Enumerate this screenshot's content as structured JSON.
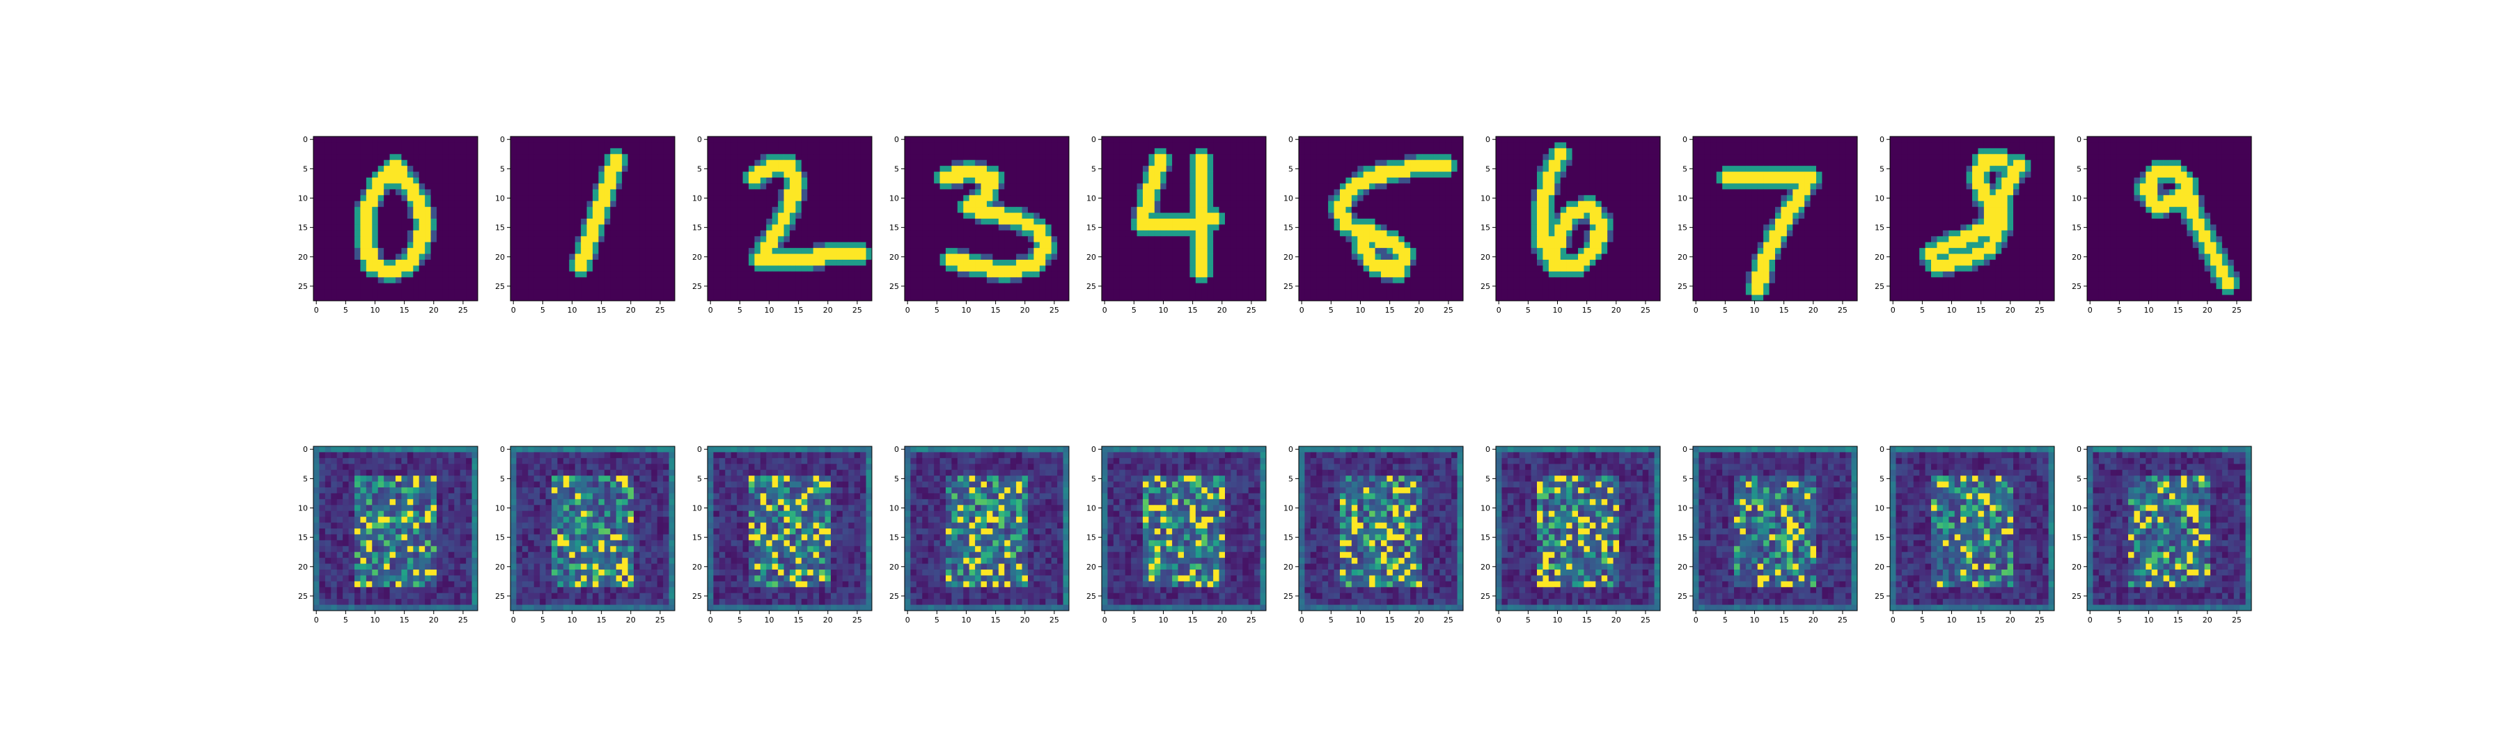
{
  "figure": {
    "colormap": "viridis",
    "background_color": "#ffffff",
    "axes_color": "#000000",
    "colormap_dark": "#440154",
    "colormap_bright": "#fde725"
  },
  "chart_data": [
    {
      "type": "heatmap",
      "row": "top",
      "column": 1,
      "image": "digit-0",
      "xlim": [
        -0.5,
        27.5
      ],
      "ylim": [
        27.5,
        -0.5
      ],
      "xticks": [
        0,
        5,
        10,
        15,
        20,
        25
      ],
      "yticks": [
        0,
        5,
        10,
        15,
        20,
        25
      ]
    },
    {
      "type": "heatmap",
      "row": "top",
      "column": 2,
      "image": "digit-1",
      "xlim": [
        -0.5,
        27.5
      ],
      "ylim": [
        27.5,
        -0.5
      ],
      "xticks": [
        0,
        5,
        10,
        15,
        20,
        25
      ],
      "yticks": [
        0,
        5,
        10,
        15,
        20,
        25
      ]
    },
    {
      "type": "heatmap",
      "row": "top",
      "column": 3,
      "image": "digit-2",
      "xlim": [
        -0.5,
        27.5
      ],
      "ylim": [
        27.5,
        -0.5
      ],
      "xticks": [
        0,
        5,
        10,
        15,
        20,
        25
      ],
      "yticks": [
        0,
        5,
        10,
        15,
        20,
        25
      ]
    },
    {
      "type": "heatmap",
      "row": "top",
      "column": 4,
      "image": "digit-3",
      "xlim": [
        -0.5,
        27.5
      ],
      "ylim": [
        27.5,
        -0.5
      ],
      "xticks": [
        0,
        5,
        10,
        15,
        20,
        25
      ],
      "yticks": [
        0,
        5,
        10,
        15,
        20,
        25
      ]
    },
    {
      "type": "heatmap",
      "row": "top",
      "column": 5,
      "image": "digit-4",
      "xlim": [
        -0.5,
        27.5
      ],
      "ylim": [
        27.5,
        -0.5
      ],
      "xticks": [
        0,
        5,
        10,
        15,
        20,
        25
      ],
      "yticks": [
        0,
        5,
        10,
        15,
        20,
        25
      ]
    },
    {
      "type": "heatmap",
      "row": "top",
      "column": 6,
      "image": "digit-5",
      "xlim": [
        -0.5,
        27.5
      ],
      "ylim": [
        27.5,
        -0.5
      ],
      "xticks": [
        0,
        5,
        10,
        15,
        20,
        25
      ],
      "yticks": [
        0,
        5,
        10,
        15,
        20,
        25
      ]
    },
    {
      "type": "heatmap",
      "row": "top",
      "column": 7,
      "image": "digit-6",
      "xlim": [
        -0.5,
        27.5
      ],
      "ylim": [
        27.5,
        -0.5
      ],
      "xticks": [
        0,
        5,
        10,
        15,
        20,
        25
      ],
      "yticks": [
        0,
        5,
        10,
        15,
        20,
        25
      ]
    },
    {
      "type": "heatmap",
      "row": "top",
      "column": 8,
      "image": "digit-7",
      "xlim": [
        -0.5,
        27.5
      ],
      "ylim": [
        27.5,
        -0.5
      ],
      "xticks": [
        0,
        5,
        10,
        15,
        20,
        25
      ],
      "yticks": [
        0,
        5,
        10,
        15,
        20,
        25
      ]
    },
    {
      "type": "heatmap",
      "row": "top",
      "column": 9,
      "image": "digit-8",
      "xlim": [
        -0.5,
        27.5
      ],
      "ylim": [
        27.5,
        -0.5
      ],
      "xticks": [
        0,
        5,
        10,
        15,
        20,
        25
      ],
      "yticks": [
        0,
        5,
        10,
        15,
        20,
        25
      ]
    },
    {
      "type": "heatmap",
      "row": "top",
      "column": 10,
      "image": "digit-9",
      "xlim": [
        -0.5,
        27.5
      ],
      "ylim": [
        27.5,
        -0.5
      ],
      "xticks": [
        0,
        5,
        10,
        15,
        20,
        25
      ],
      "yticks": [
        0,
        5,
        10,
        15,
        20,
        25
      ]
    },
    {
      "type": "heatmap",
      "row": "bottom",
      "column": 1,
      "image": "noisy-generated",
      "xlim": [
        -0.5,
        27.5
      ],
      "ylim": [
        27.5,
        -0.5
      ],
      "xticks": [
        0,
        5,
        10,
        15,
        20,
        25
      ],
      "yticks": [
        0,
        5,
        10,
        15,
        20,
        25
      ]
    },
    {
      "type": "heatmap",
      "row": "bottom",
      "column": 2,
      "image": "noisy-generated",
      "xlim": [
        -0.5,
        27.5
      ],
      "ylim": [
        27.5,
        -0.5
      ],
      "xticks": [
        0,
        5,
        10,
        15,
        20,
        25
      ],
      "yticks": [
        0,
        5,
        10,
        15,
        20,
        25
      ]
    },
    {
      "type": "heatmap",
      "row": "bottom",
      "column": 3,
      "image": "noisy-generated",
      "xlim": [
        -0.5,
        27.5
      ],
      "ylim": [
        27.5,
        -0.5
      ],
      "xticks": [
        0,
        5,
        10,
        15,
        20,
        25
      ],
      "yticks": [
        0,
        5,
        10,
        15,
        20,
        25
      ]
    },
    {
      "type": "heatmap",
      "row": "bottom",
      "column": 4,
      "image": "noisy-generated",
      "xlim": [
        -0.5,
        27.5
      ],
      "ylim": [
        27.5,
        -0.5
      ],
      "xticks": [
        0,
        5,
        10,
        15,
        20,
        25
      ],
      "yticks": [
        0,
        5,
        10,
        15,
        20,
        25
      ]
    },
    {
      "type": "heatmap",
      "row": "bottom",
      "column": 5,
      "image": "noisy-generated",
      "xlim": [
        -0.5,
        27.5
      ],
      "ylim": [
        27.5,
        -0.5
      ],
      "xticks": [
        0,
        5,
        10,
        15,
        20,
        25
      ],
      "yticks": [
        0,
        5,
        10,
        15,
        20,
        25
      ]
    },
    {
      "type": "heatmap",
      "row": "bottom",
      "column": 6,
      "image": "noisy-generated",
      "xlim": [
        -0.5,
        27.5
      ],
      "ylim": [
        27.5,
        -0.5
      ],
      "xticks": [
        0,
        5,
        10,
        15,
        20,
        25
      ],
      "yticks": [
        0,
        5,
        10,
        15,
        20,
        25
      ]
    },
    {
      "type": "heatmap",
      "row": "bottom",
      "column": 7,
      "image": "noisy-generated",
      "xlim": [
        -0.5,
        27.5
      ],
      "ylim": [
        27.5,
        -0.5
      ],
      "xticks": [
        0,
        5,
        10,
        15,
        20,
        25
      ],
      "yticks": [
        0,
        5,
        10,
        15,
        20,
        25
      ]
    },
    {
      "type": "heatmap",
      "row": "bottom",
      "column": 8,
      "image": "noisy-generated",
      "xlim": [
        -0.5,
        27.5
      ],
      "ylim": [
        27.5,
        -0.5
      ],
      "xticks": [
        0,
        5,
        10,
        15,
        20,
        25
      ],
      "yticks": [
        0,
        5,
        10,
        15,
        20,
        25
      ]
    },
    {
      "type": "heatmap",
      "row": "bottom",
      "column": 9,
      "image": "noisy-generated",
      "xlim": [
        -0.5,
        27.5
      ],
      "ylim": [
        27.5,
        -0.5
      ],
      "xticks": [
        0,
        5,
        10,
        15,
        20,
        25
      ],
      "yticks": [
        0,
        5,
        10,
        15,
        20,
        25
      ]
    },
    {
      "type": "heatmap",
      "row": "bottom",
      "column": 10,
      "image": "noisy-generated",
      "xlim": [
        -0.5,
        27.5
      ],
      "ylim": [
        27.5,
        -0.5
      ],
      "xticks": [
        0,
        5,
        10,
        15,
        20,
        25
      ],
      "yticks": [
        0,
        5,
        10,
        15,
        20,
        25
      ]
    }
  ]
}
